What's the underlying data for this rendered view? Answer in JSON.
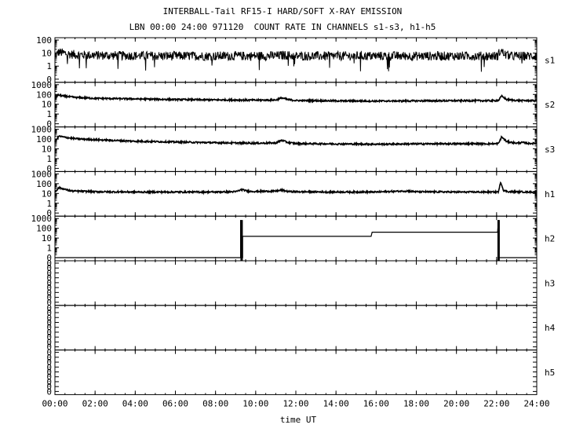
{
  "header": {
    "title_line1": "INTERBALL-Tail RF15-I HARD/SOFT X-RAY EMISSION",
    "title_line2": "LBN 00:00 24:00 971120  COUNT RATE IN CHANNELS s1-s3, h1-h5"
  },
  "chart_data": {
    "type": "line",
    "xlabel": "time UT",
    "x_ticks": [
      "00:00",
      "02:00",
      "04:00",
      "06:00",
      "08:00",
      "10:00",
      "12:00",
      "14:00",
      "16:00",
      "18:00",
      "20:00",
      "22:00",
      "24:00"
    ],
    "xlim": [
      0,
      24
    ],
    "x_unit": "hours UT",
    "y_scale": "log",
    "panels": [
      {
        "name": "s1",
        "yticks": [
          "100",
          "10",
          "1",
          "0"
        ],
        "ylim": [
          0.1,
          100
        ],
        "x": [
          0,
          0.2,
          0.4,
          0.8,
          1.5,
          3,
          6,
          9,
          11,
          11.5,
          12,
          14,
          16,
          18,
          20,
          21.9,
          22.05,
          22.2,
          22.4,
          22.7,
          23,
          24
        ],
        "y": [
          6,
          12,
          10,
          8,
          7,
          6.5,
          6,
          6,
          6.2,
          7,
          6,
          6,
          6,
          6,
          6,
          6,
          6,
          16,
          8,
          6,
          6,
          6
        ]
      },
      {
        "name": "s2",
        "yticks": [
          "1000",
          "100",
          "10",
          "1",
          "0"
        ],
        "ylim": [
          0.1,
          1000
        ],
        "x": [
          0,
          0.15,
          0.4,
          1,
          2,
          4,
          6,
          8,
          10,
          11,
          11.3,
          11.6,
          12,
          14,
          16,
          18,
          20,
          21.9,
          22.1,
          22.25,
          22.5,
          23,
          24
        ],
        "y": [
          30,
          90,
          70,
          50,
          40,
          35,
          30,
          28,
          26,
          27,
          45,
          30,
          24,
          22,
          21,
          22,
          23,
          23,
          25,
          70,
          30,
          24,
          23
        ]
      },
      {
        "name": "s3",
        "yticks": [
          "1000",
          "100",
          "10",
          "1",
          "0"
        ],
        "ylim": [
          0.1,
          1000
        ],
        "x": [
          0,
          0.2,
          0.5,
          1,
          2,
          4,
          6,
          8,
          10,
          11,
          11.3,
          11.6,
          12,
          14,
          16,
          18,
          20,
          21.9,
          22.1,
          22.25,
          22.5,
          23,
          23.3,
          23.6,
          24
        ],
        "y": [
          60,
          200,
          150,
          110,
          85,
          60,
          50,
          42,
          38,
          40,
          75,
          45,
          35,
          32,
          30,
          32,
          33,
          33,
          35,
          170,
          55,
          38,
          45,
          35,
          38
        ]
      },
      {
        "name": "h1",
        "yticks": [
          "1000",
          "100",
          "10",
          "1",
          "0"
        ],
        "ylim": [
          0.1,
          1000
        ],
        "x": [
          0,
          0.2,
          0.4,
          0.8,
          2,
          4,
          6,
          8,
          9,
          9.3,
          9.6,
          10,
          11,
          11.3,
          11.6,
          12,
          14,
          16,
          17.5,
          18,
          20,
          21.9,
          22.1,
          22.2,
          22.35,
          22.6,
          24
        ],
        "y": [
          14,
          40,
          30,
          18,
          15,
          14,
          14,
          14,
          15,
          25,
          17,
          16,
          17,
          22,
          16,
          15,
          14,
          14,
          18,
          15,
          14,
          14,
          15,
          150,
          20,
          15,
          14
        ]
      },
      {
        "name": "h2",
        "yticks": [
          "1000",
          "100",
          "10",
          "1",
          "0"
        ],
        "ylim": [
          0.1,
          1000
        ],
        "x": [
          0,
          9.25,
          9.25,
          9.3,
          9.35,
          9.35,
          15.75,
          15.8,
          22.05,
          22.1,
          22.1,
          24
        ],
        "y": [
          0.1,
          0.1,
          700,
          0.1,
          0.1,
          15,
          15,
          40,
          40,
          700,
          0.1,
          0.1
        ]
      },
      {
        "name": "h3",
        "yticks": [
          "0",
          "0",
          "0",
          "0",
          "0",
          "0",
          "0",
          "0",
          "0"
        ],
        "ylim": [
          0,
          1
        ],
        "x": [],
        "y": []
      },
      {
        "name": "h4",
        "yticks": [
          "0",
          "0",
          "0",
          "0",
          "0",
          "0",
          "0",
          "0",
          "0"
        ],
        "ylim": [
          0,
          1
        ],
        "x": [],
        "y": []
      },
      {
        "name": "h5",
        "yticks": [
          "0",
          "0",
          "0",
          "0",
          "0",
          "0",
          "0",
          "0",
          "0"
        ],
        "ylim": [
          0,
          1
        ],
        "x": [],
        "y": []
      }
    ]
  }
}
